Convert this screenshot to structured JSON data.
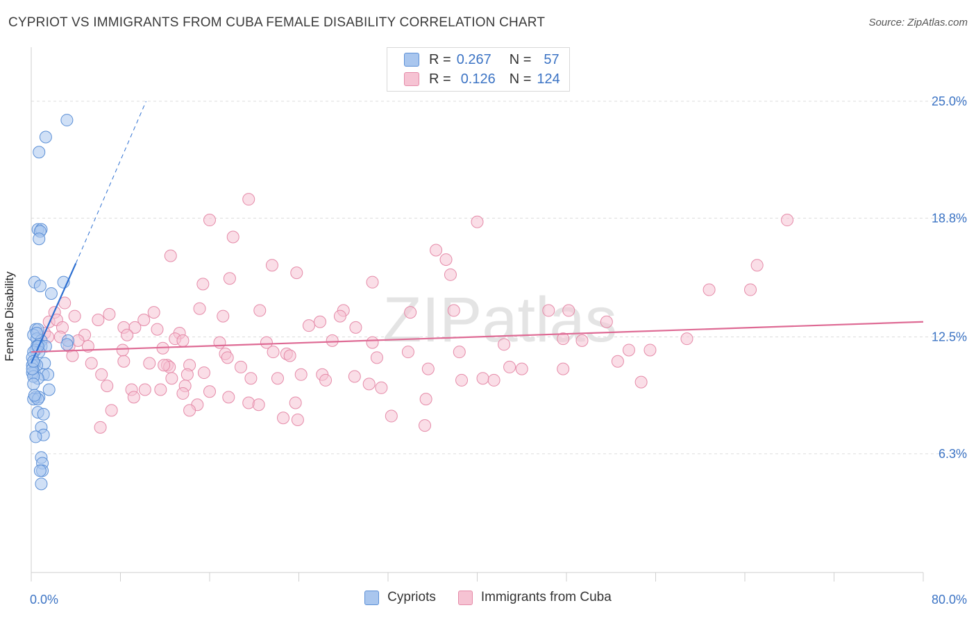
{
  "title": "CYPRIOT VS IMMIGRANTS FROM CUBA FEMALE DISABILITY CORRELATION CHART",
  "source": "Source: ZipAtlas.com",
  "watermark": "ZIPatlas",
  "legend_top": {
    "rows": [
      {
        "r_label": "R =",
        "r_value": "0.267",
        "n_label": "N =",
        "n_value": "57"
      },
      {
        "r_label": "R =",
        "r_value": "0.126",
        "n_label": "N =",
        "n_value": "124"
      }
    ]
  },
  "legend_bottom": [
    "Cypriots",
    "Immigrants from Cuba"
  ],
  "colors": {
    "blue_fill": "#a9c6ee",
    "blue_stroke": "#5b8fd6",
    "blue_line": "#2d6fd1",
    "pink_fill": "#f6c3d3",
    "pink_stroke": "#e58aa8",
    "pink_line": "#de6a94",
    "axis_label": "#3b73c4",
    "grid": "#dcdcdc"
  },
  "chart_data": {
    "type": "scatter",
    "title": "CYPRIOT VS IMMIGRANTS FROM CUBA FEMALE DISABILITY CORRELATION CHART",
    "xlabel": "",
    "ylabel": "Female Disability",
    "xlim": [
      0,
      80
    ],
    "ylim": [
      0,
      27.5
    ],
    "x_tick_labels": [
      "0.0%",
      "80.0%"
    ],
    "y_ticks": [
      6.3,
      12.5,
      18.8,
      25.0
    ],
    "y_tick_labels": [
      "6.3%",
      "12.5%",
      "18.8%",
      "25.0%"
    ],
    "grid": true,
    "legend_position": "bottom",
    "series": [
      {
        "name": "Cypriots",
        "r": 0.267,
        "n": 57,
        "trend": {
          "x0": 0.0,
          "y0": 11.1,
          "x1": 4.0,
          "y1": 16.4,
          "dash_to_x": 10.3,
          "dash_to_y": 25.0
        },
        "points": [
          [
            3.2,
            24.0
          ],
          [
            1.3,
            23.1
          ],
          [
            0.7,
            22.3
          ],
          [
            0.6,
            18.2
          ],
          [
            0.9,
            18.2
          ],
          [
            0.8,
            18.1
          ],
          [
            0.7,
            17.7
          ],
          [
            2.9,
            15.4
          ],
          [
            0.3,
            15.4
          ],
          [
            0.8,
            15.2
          ],
          [
            1.8,
            14.8
          ],
          [
            0.4,
            12.9
          ],
          [
            0.6,
            12.9
          ],
          [
            0.2,
            12.6
          ],
          [
            0.5,
            12.4
          ],
          [
            0.9,
            12.3
          ],
          [
            3.3,
            12.3
          ],
          [
            3.2,
            12.1
          ],
          [
            0.7,
            12.1
          ],
          [
            0.9,
            12.0
          ],
          [
            0.5,
            12.0
          ],
          [
            1.3,
            12.0
          ],
          [
            0.4,
            11.8
          ],
          [
            0.7,
            11.7
          ],
          [
            0.2,
            11.7
          ],
          [
            0.1,
            11.4
          ],
          [
            1.2,
            11.1
          ],
          [
            0.3,
            11.1
          ],
          [
            0.5,
            11.0
          ],
          [
            0.1,
            11.0
          ],
          [
            0.3,
            10.6
          ],
          [
            0.1,
            10.6
          ],
          [
            1.1,
            10.5
          ],
          [
            1.5,
            10.5
          ],
          [
            0.6,
            10.3
          ],
          [
            0.2,
            10.4
          ],
          [
            0.2,
            10.0
          ],
          [
            1.6,
            9.7
          ],
          [
            0.4,
            9.3
          ],
          [
            0.7,
            9.3
          ],
          [
            0.2,
            9.2
          ],
          [
            0.6,
            9.2
          ],
          [
            0.6,
            8.5
          ],
          [
            1.1,
            8.4
          ],
          [
            0.9,
            7.7
          ],
          [
            1.1,
            7.3
          ],
          [
            0.4,
            7.2
          ],
          [
            0.9,
            6.1
          ],
          [
            1.0,
            5.8
          ],
          [
            1.0,
            5.4
          ],
          [
            0.8,
            5.4
          ],
          [
            0.9,
            4.7
          ],
          [
            0.1,
            10.8
          ],
          [
            0.3,
            9.4
          ],
          [
            0.5,
            12.7
          ],
          [
            0.2,
            11.2
          ],
          [
            0.6,
            12.0
          ]
        ]
      },
      {
        "name": "Immigrants from Cuba",
        "r": 0.126,
        "n": 124,
        "trend": {
          "x0": 0.0,
          "y0": 11.7,
          "x1": 80.0,
          "y1": 13.3
        },
        "points": [
          [
            19.5,
            19.8
          ],
          [
            16.0,
            18.7
          ],
          [
            40.0,
            18.6
          ],
          [
            67.8,
            18.7
          ],
          [
            18.1,
            17.8
          ],
          [
            36.3,
            17.1
          ],
          [
            12.5,
            16.8
          ],
          [
            37.2,
            16.6
          ],
          [
            21.6,
            16.3
          ],
          [
            65.1,
            16.3
          ],
          [
            23.8,
            15.9
          ],
          [
            37.6,
            15.8
          ],
          [
            17.8,
            15.6
          ],
          [
            15.4,
            15.3
          ],
          [
            30.6,
            15.4
          ],
          [
            60.8,
            15.0
          ],
          [
            64.5,
            15.0
          ],
          [
            3.0,
            14.3
          ],
          [
            15.1,
            14.0
          ],
          [
            20.5,
            13.9
          ],
          [
            28.0,
            13.9
          ],
          [
            37.9,
            13.9
          ],
          [
            46.4,
            13.9
          ],
          [
            48.2,
            13.9
          ],
          [
            34.0,
            13.8
          ],
          [
            11.0,
            13.8
          ],
          [
            17.2,
            13.6
          ],
          [
            2.1,
            13.8
          ],
          [
            3.9,
            13.6
          ],
          [
            7.0,
            13.7
          ],
          [
            10.1,
            13.4
          ],
          [
            27.7,
            13.6
          ],
          [
            51.6,
            13.3
          ],
          [
            25.9,
            13.3
          ],
          [
            6.0,
            13.4
          ],
          [
            1.6,
            13.3
          ],
          [
            2.3,
            13.4
          ],
          [
            8.3,
            13.0
          ],
          [
            9.3,
            13.0
          ],
          [
            11.3,
            12.9
          ],
          [
            24.9,
            13.1
          ],
          [
            29.1,
            13.0
          ],
          [
            2.8,
            13.0
          ],
          [
            13.3,
            12.7
          ],
          [
            8.6,
            12.6
          ],
          [
            12.9,
            12.4
          ],
          [
            1.2,
            12.7
          ],
          [
            4.8,
            12.6
          ],
          [
            2.6,
            12.5
          ],
          [
            1.5,
            12.5
          ],
          [
            47.7,
            12.4
          ],
          [
            58.8,
            12.4
          ],
          [
            16.9,
            12.2
          ],
          [
            21.1,
            12.2
          ],
          [
            13.6,
            12.3
          ],
          [
            27.0,
            12.3
          ],
          [
            49.4,
            12.3
          ],
          [
            30.6,
            12.2
          ],
          [
            42.4,
            12.1
          ],
          [
            3.4,
            12.0
          ],
          [
            5.1,
            12.0
          ],
          [
            11.8,
            11.9
          ],
          [
            8.2,
            11.8
          ],
          [
            33.8,
            11.7
          ],
          [
            4.2,
            12.3
          ],
          [
            21.7,
            11.7
          ],
          [
            38.4,
            11.7
          ],
          [
            53.6,
            11.8
          ],
          [
            55.5,
            11.8
          ],
          [
            22.9,
            11.6
          ],
          [
            17.4,
            11.6
          ],
          [
            3.7,
            11.5
          ],
          [
            17.6,
            11.4
          ],
          [
            23.2,
            11.5
          ],
          [
            31.0,
            11.4
          ],
          [
            52.6,
            11.2
          ],
          [
            8.3,
            11.2
          ],
          [
            10.6,
            11.1
          ],
          [
            5.4,
            11.1
          ],
          [
            12.2,
            11.0
          ],
          [
            12.4,
            10.9
          ],
          [
            11.9,
            11.0
          ],
          [
            14.2,
            11.0
          ],
          [
            18.8,
            10.9
          ],
          [
            42.9,
            10.9
          ],
          [
            44.0,
            10.8
          ],
          [
            35.6,
            10.8
          ],
          [
            47.7,
            10.8
          ],
          [
            15.5,
            10.6
          ],
          [
            6.3,
            10.5
          ],
          [
            24.2,
            10.5
          ],
          [
            29.0,
            10.4
          ],
          [
            26.1,
            10.5
          ],
          [
            40.5,
            10.3
          ],
          [
            14.0,
            10.5
          ],
          [
            19.7,
            10.3
          ],
          [
            22.1,
            10.3
          ],
          [
            26.4,
            10.2
          ],
          [
            38.6,
            10.2
          ],
          [
            41.5,
            10.2
          ],
          [
            54.7,
            10.1
          ],
          [
            12.6,
            10.3
          ],
          [
            6.8,
            9.9
          ],
          [
            13.8,
            9.9
          ],
          [
            30.3,
            10.0
          ],
          [
            31.4,
            9.8
          ],
          [
            9.0,
            9.7
          ],
          [
            10.2,
            9.7
          ],
          [
            11.6,
            9.7
          ],
          [
            16.0,
            9.6
          ],
          [
            13.6,
            9.5
          ],
          [
            17.7,
            9.3
          ],
          [
            9.2,
            9.3
          ],
          [
            35.4,
            9.2
          ],
          [
            23.7,
            9.0
          ],
          [
            14.9,
            8.9
          ],
          [
            19.5,
            9.0
          ],
          [
            20.4,
            8.9
          ],
          [
            7.2,
            8.6
          ],
          [
            14.2,
            8.6
          ],
          [
            22.6,
            8.2
          ],
          [
            32.3,
            8.3
          ],
          [
            23.9,
            8.1
          ],
          [
            35.3,
            7.8
          ],
          [
            6.2,
            7.7
          ]
        ]
      }
    ]
  }
}
